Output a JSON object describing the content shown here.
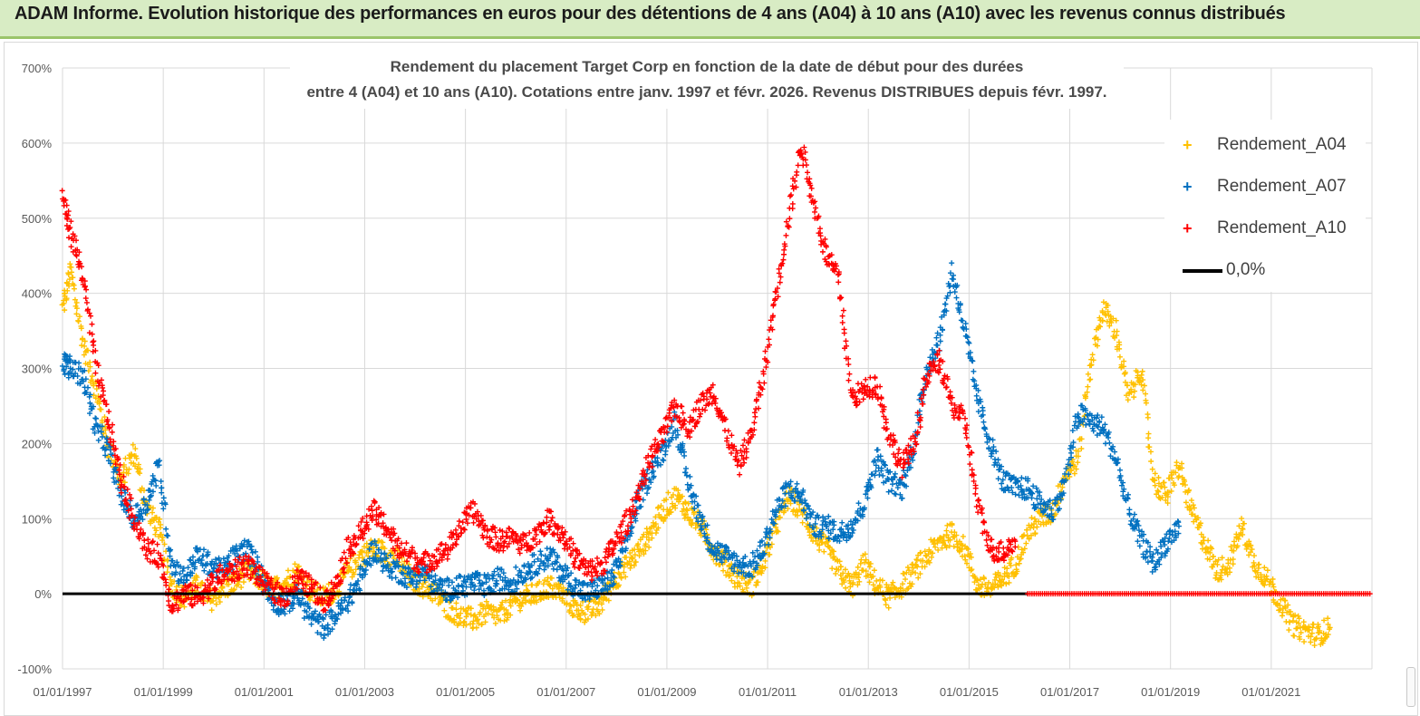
{
  "banner": {
    "title": "ADAM Informe. Evolution historique des performances en euros pour des détentions de 4 ans (A04) à 10 ans (A10) avec les revenus connus distribués"
  },
  "chart_data": {
    "type": "scatter",
    "title_lines": [
      "Rendement du placement Target Corp en fonction de la date de début pour des durées",
      "entre 4 (A04) et 10 ans (A10).  Cotations entre janv. 1997 et févr. 2026. Revenus DISTRIBUES depuis févr. 1997."
    ],
    "xlabel": "",
    "ylabel": "",
    "x_ticks": [
      "01/01/1997",
      "01/01/1999",
      "01/01/2001",
      "01/01/2003",
      "01/01/2005",
      "01/01/2007",
      "01/01/2009",
      "01/01/2011",
      "01/01/2013",
      "01/01/2015",
      "01/01/2017",
      "01/01/2019",
      "01/01/2021"
    ],
    "xlim": [
      "01/01/1997",
      "01/01/2023"
    ],
    "y_ticks": [
      "700%",
      "600%",
      "500%",
      "400%",
      "300%",
      "200%",
      "100%",
      "0%",
      "-100%"
    ],
    "ylim": [
      -100,
      700
    ],
    "grid": "horizontal + vertical",
    "legend_position": "right",
    "series": [
      {
        "name": "Rendement_A04",
        "color": "#ffc000",
        "marker": "+",
        "points": [
          [
            "1997-01",
            380
          ],
          [
            "1997-03",
            430
          ],
          [
            "1997-06",
            330
          ],
          [
            "1997-09",
            270
          ],
          [
            "1997-12",
            195
          ],
          [
            "1998-03",
            150
          ],
          [
            "1998-06",
            190
          ],
          [
            "1998-09",
            115
          ],
          [
            "1998-12",
            85
          ],
          [
            "1999-03",
            10
          ],
          [
            "1999-06",
            -5
          ],
          [
            "1999-09",
            10
          ],
          [
            "1999-12",
            -10
          ],
          [
            "2000-03",
            5
          ],
          [
            "2000-06",
            15
          ],
          [
            "2000-09",
            30
          ],
          [
            "2000-12",
            20
          ],
          [
            "2001-03",
            5
          ],
          [
            "2001-06",
            15
          ],
          [
            "2001-09",
            30
          ],
          [
            "2001-12",
            5
          ],
          [
            "2002-03",
            -5
          ],
          [
            "2002-06",
            5
          ],
          [
            "2002-09",
            30
          ],
          [
            "2002-12",
            50
          ],
          [
            "2003-03",
            60
          ],
          [
            "2003-06",
            55
          ],
          [
            "2003-09",
            45
          ],
          [
            "2003-12",
            20
          ],
          [
            "2004-03",
            10
          ],
          [
            "2004-06",
            0
          ],
          [
            "2004-09",
            -20
          ],
          [
            "2004-12",
            -30
          ],
          [
            "2005-03",
            -35
          ],
          [
            "2005-06",
            -25
          ],
          [
            "2005-09",
            -30
          ],
          [
            "2005-12",
            -15
          ],
          [
            "2006-03",
            -5
          ],
          [
            "2006-06",
            0
          ],
          [
            "2006-09",
            10
          ],
          [
            "2006-12",
            0
          ],
          [
            "2007-03",
            -20
          ],
          [
            "2007-06",
            -25
          ],
          [
            "2007-09",
            -15
          ],
          [
            "2007-12",
            15
          ],
          [
            "2008-03",
            35
          ],
          [
            "2008-06",
            55
          ],
          [
            "2008-09",
            80
          ],
          [
            "2008-12",
            110
          ],
          [
            "2009-03",
            130
          ],
          [
            "2009-06",
            110
          ],
          [
            "2009-09",
            90
          ],
          [
            "2009-12",
            60
          ],
          [
            "2010-03",
            40
          ],
          [
            "2010-06",
            20
          ],
          [
            "2010-09",
            10
          ],
          [
            "2010-12",
            40
          ],
          [
            "2011-03",
            90
          ],
          [
            "2011-06",
            130
          ],
          [
            "2011-09",
            110
          ],
          [
            "2011-12",
            80
          ],
          [
            "2012-03",
            60
          ],
          [
            "2012-06",
            30
          ],
          [
            "2012-09",
            10
          ],
          [
            "2012-12",
            40
          ],
          [
            "2013-03",
            10
          ],
          [
            "2013-06",
            -5
          ],
          [
            "2013-09",
            10
          ],
          [
            "2013-12",
            30
          ],
          [
            "2014-03",
            50
          ],
          [
            "2014-06",
            70
          ],
          [
            "2014-09",
            80
          ],
          [
            "2014-12",
            60
          ],
          [
            "2015-03",
            10
          ],
          [
            "2015-06",
            5
          ],
          [
            "2015-09",
            20
          ],
          [
            "2015-12",
            40
          ],
          [
            "2016-03",
            80
          ],
          [
            "2016-06",
            100
          ],
          [
            "2016-09",
            110
          ],
          [
            "2016-12",
            160
          ],
          [
            "2017-03",
            180
          ],
          [
            "2017-06",
            310
          ],
          [
            "2017-09",
            380
          ],
          [
            "2017-12",
            350
          ],
          [
            "2018-03",
            260
          ],
          [
            "2018-06",
            300
          ],
          [
            "2018-09",
            150
          ],
          [
            "2018-12",
            130
          ],
          [
            "2019-03",
            170
          ],
          [
            "2019-06",
            110
          ],
          [
            "2019-09",
            70
          ],
          [
            "2019-12",
            30
          ],
          [
            "2020-03",
            40
          ],
          [
            "2020-06",
            90
          ],
          [
            "2020-09",
            40
          ],
          [
            "2020-12",
            20
          ],
          [
            "2021-03",
            -10
          ],
          [
            "2021-06",
            -40
          ],
          [
            "2021-09",
            -50
          ],
          [
            "2021-12",
            -55
          ],
          [
            "2022-03",
            -45
          ]
        ]
      },
      {
        "name": "Rendement_A07",
        "color": "#0070c0",
        "marker": "+",
        "points": [
          [
            "1997-01",
            310
          ],
          [
            "1997-03",
            300
          ],
          [
            "1997-06",
            290
          ],
          [
            "1997-09",
            220
          ],
          [
            "1997-12",
            190
          ],
          [
            "1998-03",
            130
          ],
          [
            "1998-06",
            100
          ],
          [
            "1998-09",
            120
          ],
          [
            "1998-12",
            170
          ],
          [
            "1999-03",
            40
          ],
          [
            "1999-06",
            20
          ],
          [
            "1999-09",
            50
          ],
          [
            "1999-12",
            40
          ],
          [
            "2000-03",
            30
          ],
          [
            "2000-06",
            50
          ],
          [
            "2000-09",
            60
          ],
          [
            "2000-12",
            30
          ],
          [
            "2001-03",
            -10
          ],
          [
            "2001-06",
            -15
          ],
          [
            "2001-09",
            0
          ],
          [
            "2001-12",
            -30
          ],
          [
            "2002-03",
            -45
          ],
          [
            "2002-06",
            -30
          ],
          [
            "2002-09",
            -10
          ],
          [
            "2002-12",
            20
          ],
          [
            "2003-03",
            60
          ],
          [
            "2003-06",
            40
          ],
          [
            "2003-09",
            30
          ],
          [
            "2003-12",
            20
          ],
          [
            "2004-03",
            30
          ],
          [
            "2004-06",
            10
          ],
          [
            "2004-09",
            5
          ],
          [
            "2004-12",
            10
          ],
          [
            "2005-03",
            15
          ],
          [
            "2005-06",
            10
          ],
          [
            "2005-09",
            20
          ],
          [
            "2005-12",
            15
          ],
          [
            "2006-03",
            30
          ],
          [
            "2006-06",
            40
          ],
          [
            "2006-09",
            50
          ],
          [
            "2006-12",
            30
          ],
          [
            "2007-03",
            10
          ],
          [
            "2007-06",
            0
          ],
          [
            "2007-09",
            10
          ],
          [
            "2007-12",
            20
          ],
          [
            "2008-03",
            60
          ],
          [
            "2008-06",
            120
          ],
          [
            "2008-09",
            160
          ],
          [
            "2008-12",
            190
          ],
          [
            "2009-03",
            230
          ],
          [
            "2009-06",
            150
          ],
          [
            "2009-09",
            100
          ],
          [
            "2009-12",
            60
          ],
          [
            "2010-03",
            50
          ],
          [
            "2010-06",
            40
          ],
          [
            "2010-09",
            35
          ],
          [
            "2010-12",
            60
          ],
          [
            "2011-03",
            110
          ],
          [
            "2011-06",
            140
          ],
          [
            "2011-09",
            130
          ],
          [
            "2011-12",
            90
          ],
          [
            "2012-03",
            90
          ],
          [
            "2012-06",
            80
          ],
          [
            "2012-09",
            90
          ],
          [
            "2012-12",
            120
          ],
          [
            "2013-03",
            180
          ],
          [
            "2013-06",
            150
          ],
          [
            "2013-09",
            140
          ],
          [
            "2013-12",
            200
          ],
          [
            "2014-03",
            300
          ],
          [
            "2014-06",
            340
          ],
          [
            "2014-09",
            430
          ],
          [
            "2014-12",
            350
          ],
          [
            "2015-03",
            260
          ],
          [
            "2015-06",
            200
          ],
          [
            "2015-09",
            150
          ],
          [
            "2015-12",
            140
          ],
          [
            "2016-03",
            140
          ],
          [
            "2016-06",
            120
          ],
          [
            "2016-09",
            110
          ],
          [
            "2016-12",
            150
          ],
          [
            "2017-03",
            240
          ],
          [
            "2017-06",
            230
          ],
          [
            "2017-09",
            220
          ],
          [
            "2017-12",
            180
          ],
          [
            "2018-03",
            110
          ],
          [
            "2018-06",
            70
          ],
          [
            "2018-09",
            40
          ],
          [
            "2018-12",
            70
          ],
          [
            "2019-03",
            90
          ]
        ]
      },
      {
        "name": "Rendement_A10",
        "color": "#ff0000",
        "marker": "+",
        "points": [
          [
            "1997-01",
            530
          ],
          [
            "1997-03",
            480
          ],
          [
            "1997-06",
            420
          ],
          [
            "1997-09",
            300
          ],
          [
            "1997-12",
            230
          ],
          [
            "1998-03",
            150
          ],
          [
            "1998-06",
            100
          ],
          [
            "1998-09",
            60
          ],
          [
            "1998-12",
            50
          ],
          [
            "1999-03",
            -15
          ],
          [
            "1999-06",
            0
          ],
          [
            "1999-09",
            -5
          ],
          [
            "1999-12",
            10
          ],
          [
            "2000-03",
            25
          ],
          [
            "2000-06",
            30
          ],
          [
            "2000-09",
            40
          ],
          [
            "2000-12",
            20
          ],
          [
            "2001-03",
            5
          ],
          [
            "2001-06",
            -5
          ],
          [
            "2001-09",
            20
          ],
          [
            "2001-12",
            10
          ],
          [
            "2002-03",
            -10
          ],
          [
            "2002-06",
            10
          ],
          [
            "2002-09",
            60
          ],
          [
            "2002-12",
            80
          ],
          [
            "2003-03",
            110
          ],
          [
            "2003-06",
            90
          ],
          [
            "2003-09",
            60
          ],
          [
            "2003-12",
            50
          ],
          [
            "2004-03",
            40
          ],
          [
            "2004-06",
            50
          ],
          [
            "2004-09",
            60
          ],
          [
            "2004-12",
            90
          ],
          [
            "2005-03",
            110
          ],
          [
            "2005-06",
            80
          ],
          [
            "2005-09",
            70
          ],
          [
            "2005-12",
            75
          ],
          [
            "2006-03",
            65
          ],
          [
            "2006-06",
            80
          ],
          [
            "2006-09",
            100
          ],
          [
            "2006-12",
            80
          ],
          [
            "2007-03",
            50
          ],
          [
            "2007-06",
            30
          ],
          [
            "2007-09",
            35
          ],
          [
            "2007-12",
            60
          ],
          [
            "2008-03",
            90
          ],
          [
            "2008-06",
            130
          ],
          [
            "2008-09",
            180
          ],
          [
            "2008-12",
            210
          ],
          [
            "2009-03",
            250
          ],
          [
            "2009-06",
            220
          ],
          [
            "2009-09",
            250
          ],
          [
            "2009-12",
            270
          ],
          [
            "2010-03",
            220
          ],
          [
            "2010-06",
            170
          ],
          [
            "2010-09",
            210
          ],
          [
            "2010-12",
            290
          ],
          [
            "2011-03",
            400
          ],
          [
            "2011-06",
            500
          ],
          [
            "2011-09",
            600
          ],
          [
            "2011-12",
            520
          ],
          [
            "2012-03",
            450
          ],
          [
            "2012-06",
            420
          ],
          [
            "2012-09",
            260
          ],
          [
            "2012-12",
            270
          ],
          [
            "2013-03",
            280
          ],
          [
            "2013-06",
            210
          ],
          [
            "2013-09",
            170
          ],
          [
            "2013-12",
            200
          ],
          [
            "2014-03",
            290
          ],
          [
            "2014-06",
            310
          ],
          [
            "2014-09",
            250
          ],
          [
            "2014-12",
            230
          ],
          [
            "2015-03",
            120
          ],
          [
            "2015-06",
            60
          ],
          [
            "2015-09",
            55
          ],
          [
            "2015-12",
            70
          ]
        ]
      },
      {
        "name": "0,0%",
        "color": "#000000",
        "marker": "line",
        "value": 0
      }
    ],
    "red_zero_band": {
      "from": "2016-03",
      "to": "2023-01",
      "value": 0,
      "color": "#ff0000"
    }
  }
}
